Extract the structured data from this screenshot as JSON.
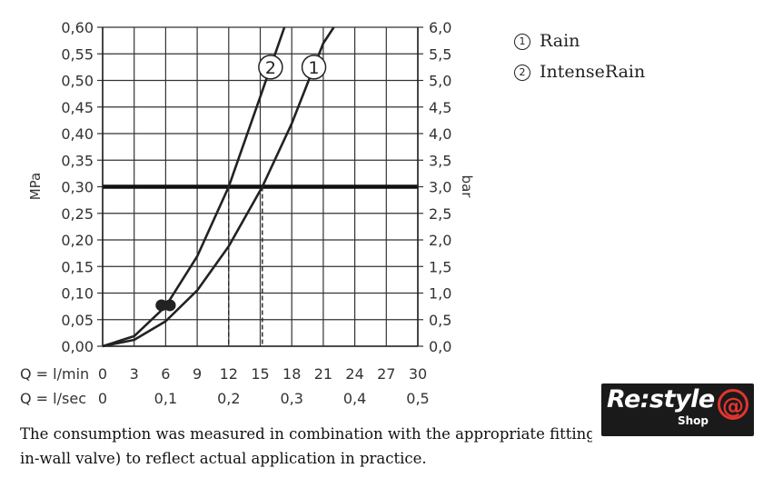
{
  "chart_data": {
    "type": "line",
    "xlabel_primary": "Q = l/min",
    "xlabel_secondary": "Q = l/sec",
    "x_ticks_lmin": [
      "0",
      "3",
      "6",
      "9",
      "12",
      "15",
      "18",
      "21",
      "24",
      "27",
      "30"
    ],
    "x_ticks_lsec": [
      "0",
      "0,1",
      "0,2",
      "0,3",
      "0,4",
      "0,5"
    ],
    "ylabel_left": "MPa",
    "ylabel_right": "bar",
    "y_ticks_mpa": [
      "0,00",
      "0,05",
      "0,10",
      "0,15",
      "0,20",
      "0,25",
      "0,30",
      "0,35",
      "0,40",
      "0,45",
      "0,50",
      "0,55",
      "0,60"
    ],
    "y_ticks_bar": [
      "0,0",
      "0,5",
      "1,0",
      "1,5",
      "2,0",
      "2,5",
      "3,0",
      "3,5",
      "4,0",
      "4,5",
      "5,0",
      "5,5",
      "6,0"
    ],
    "xlim": [
      0,
      30
    ],
    "ylim": [
      0,
      0.6
    ],
    "grid": true,
    "reference_pressure_mpa": 0.3,
    "series": [
      {
        "marker_label": "1",
        "x": [
          0,
          3,
          6,
          9,
          12,
          15.2,
          18,
          21,
          22
        ],
        "y": [
          0,
          0.012,
          0.047,
          0.105,
          0.188,
          0.3,
          0.419,
          0.57,
          0.6
        ]
      },
      {
        "marker_label": "2",
        "x": [
          0,
          3,
          6,
          9,
          12,
          15,
          17.3
        ],
        "y": [
          0,
          0.019,
          0.075,
          0.169,
          0.3,
          0.469,
          0.6
        ]
      }
    ],
    "points": [
      {
        "x": 5.6,
        "y": 0.077
      },
      {
        "x": 6.4,
        "y": 0.077
      }
    ],
    "dashed_at_x": [
      12,
      15.2
    ]
  },
  "legend": [
    {
      "badge": "1",
      "label": "Rain"
    },
    {
      "badge": "2",
      "label": "IntenseRain"
    }
  ],
  "note": {
    "line1": "The consumption was measured in combination with the appropriate fittings",
    "line2": "in-wall valve) to reflect actual application in practice."
  },
  "logo": {
    "brand": "Re:style",
    "shop": "Shop",
    "at_symbol": "@"
  }
}
